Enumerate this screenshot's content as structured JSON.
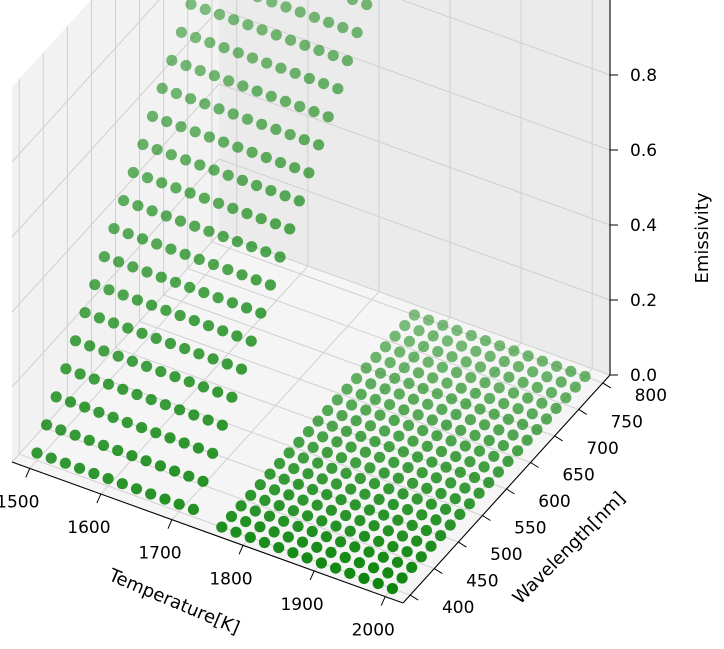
{
  "chart_data": {
    "type": "scatter",
    "projection": "3d",
    "title": "",
    "xlabel": "Temperature[K]",
    "ylabel": "Wavelength[nm]",
    "zlabel": "Emissivity",
    "xlim": [
      1475,
      2025
    ],
    "ylim": [
      385,
      815
    ],
    "zlim": [
      0,
      1
    ],
    "x_ticks": [
      "1500",
      "1600",
      "1700",
      "1800",
      "1900",
      "2000"
    ],
    "y_ticks": [
      "400",
      "450",
      "500",
      "550",
      "600",
      "650",
      "700",
      "750",
      "800"
    ],
    "z_ticks": [
      "0.0",
      "0.2",
      "0.4",
      "0.6",
      "0.8"
    ],
    "x_tick_values": [
      1500,
      1600,
      1700,
      1800,
      1900,
      2000
    ],
    "y_tick_values": [
      400,
      450,
      500,
      550,
      600,
      650,
      700,
      750,
      800
    ],
    "z_tick_values": [
      0.0,
      0.2,
      0.4,
      0.6,
      0.8
    ],
    "grid": true,
    "marker_color": "#008000",
    "series": [
      {
        "temperature_range": [
          1500,
          1720
        ],
        "temperature_step": 20,
        "wavelength_range": [
          400,
          800
        ],
        "wavelength_step": 20,
        "emissivity_at_min_wavelength": 0.02,
        "emissivity_at_max_wavelength": 0.95
      },
      {
        "temperature_range": [
          1760,
          2000
        ],
        "temperature_step": 20,
        "wavelength_range": [
          400,
          800
        ],
        "wavelength_step": 20,
        "emissivity_at_min_wavelength": 0.0,
        "emissivity_at_max_wavelength": 0.0
      }
    ]
  }
}
